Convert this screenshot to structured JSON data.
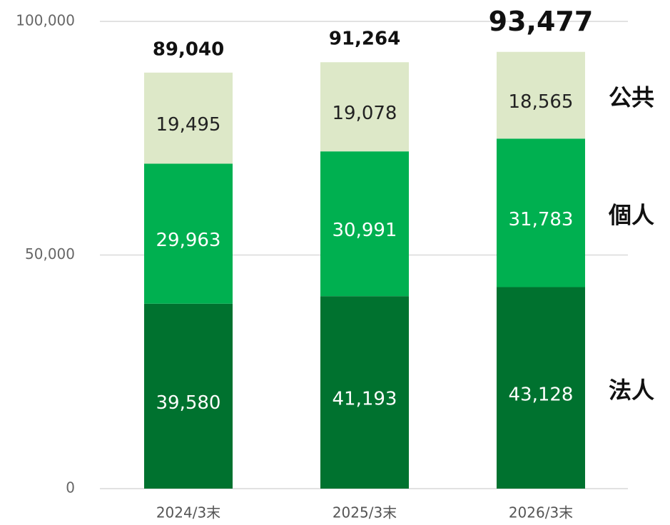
{
  "chart_data": {
    "type": "stacked_bar",
    "categories": [
      "2024/3末",
      "2025/3末",
      "2026/3末"
    ],
    "series": [
      {
        "name": "法人",
        "color": "#00722f",
        "values": [
          39580,
          41193,
          43128
        ],
        "value_labels": [
          "39,580",
          "41,193",
          "43,128"
        ]
      },
      {
        "name": "個人",
        "color": "#00b050",
        "values": [
          29963,
          30991,
          31783
        ],
        "value_labels": [
          "29,963",
          "30,991",
          "31,783"
        ]
      },
      {
        "name": "公共",
        "color": "#dde8c8",
        "values": [
          19495,
          19078,
          18565
        ],
        "value_labels": [
          "19,495",
          "19,078",
          "18,565"
        ]
      }
    ],
    "totals": {
      "values": [
        89040,
        91264,
        93477
      ],
      "value_labels": [
        "89,040",
        "91,264",
        "93,477"
      ]
    },
    "ylim": [
      0,
      100000
    ],
    "yticks": [
      0,
      {
        "value": 50000,
        "label": "50,000"
      },
      {
        "value": 100000,
        "label": "100,000"
      }
    ],
    "grid": true
  }
}
